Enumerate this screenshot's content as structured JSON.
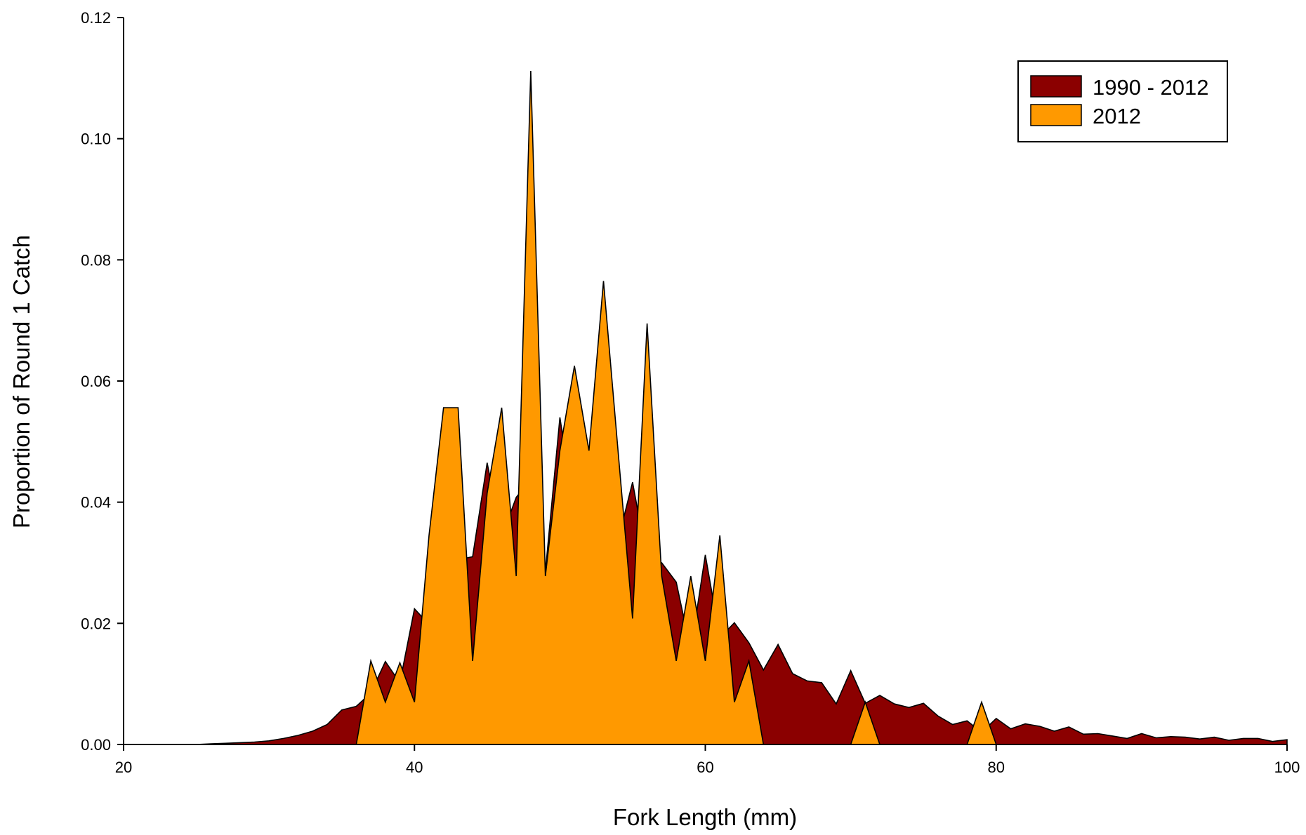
{
  "chart_data": {
    "type": "area",
    "xlabel": "Fork Length (mm)",
    "ylabel": "Proportion of Round 1 Catch",
    "xlim": [
      20,
      100
    ],
    "ylim": [
      0,
      0.12
    ],
    "x_ticks": [
      "20",
      "40",
      "60",
      "80",
      "100"
    ],
    "y_ticks": [
      "0.00",
      "0.02",
      "0.04",
      "0.06",
      "0.08",
      "0.10",
      "0.12"
    ],
    "grid": false,
    "legend_position": "top-right",
    "series": [
      {
        "name": "1990 - 2012",
        "color": "#8b0000",
        "x": [
          20,
          21,
          22,
          23,
          24,
          25,
          26,
          27,
          28,
          29,
          30,
          31,
          32,
          33,
          34,
          35,
          36,
          37,
          38,
          39,
          40,
          41,
          42,
          43,
          44,
          45,
          46,
          47,
          48,
          49,
          50,
          51,
          52,
          53,
          54,
          55,
          56,
          57,
          58,
          59,
          60,
          61,
          62,
          63,
          64,
          65,
          66,
          67,
          68,
          69,
          70,
          71,
          72,
          73,
          74,
          75,
          76,
          77,
          78,
          79,
          80,
          81,
          82,
          83,
          84,
          85,
          86,
          87,
          88,
          89,
          90,
          91,
          92,
          93,
          94,
          95,
          96,
          97,
          98,
          99,
          100
        ],
        "values": [
          0,
          0,
          0,
          0,
          0,
          0,
          0.0001,
          0.0002,
          0.0003,
          0.0004,
          0.0006,
          0.001,
          0.0015,
          0.0022,
          0.0033,
          0.0057,
          0.0063,
          0.0085,
          0.0137,
          0.0102,
          0.0224,
          0.0198,
          0.0312,
          0.0305,
          0.031,
          0.0465,
          0.0343,
          0.0408,
          0.0438,
          0.0285,
          0.054,
          0.0383,
          0.0478,
          0.0405,
          0.0337,
          0.0433,
          0.0302,
          0.03,
          0.0268,
          0.0155,
          0.0313,
          0.0176,
          0.0201,
          0.0168,
          0.0123,
          0.0165,
          0.0117,
          0.0105,
          0.0102,
          0.0067,
          0.0122,
          0.0068,
          0.0081,
          0.0067,
          0.0061,
          0.0068,
          0.0047,
          0.0033,
          0.0039,
          0.002,
          0.0043,
          0.0026,
          0.0034,
          0.003,
          0.0022,
          0.0029,
          0.0017,
          0.0018,
          0.0014,
          0.001,
          0.0018,
          0.0011,
          0.0013,
          0.0012,
          0.0009,
          0.0012,
          0.0007,
          0.001,
          0.001,
          0.0005,
          0.0008
        ]
      },
      {
        "name": "2012",
        "color": "#ff9900",
        "x": [
          20,
          36,
          37,
          38,
          39,
          40,
          41,
          42,
          43,
          44,
          45,
          46,
          47,
          48,
          49,
          50,
          51,
          52,
          53,
          54,
          55,
          56,
          57,
          58,
          59,
          60,
          61,
          62,
          63,
          64,
          70,
          71,
          72,
          78,
          79,
          80,
          100
        ],
        "values": [
          0,
          0,
          0.0138,
          0.007,
          0.0135,
          0.007,
          0.0345,
          0.0556,
          0.0556,
          0.0138,
          0.0415,
          0.0556,
          0.0278,
          0.1112,
          0.0278,
          0.0485,
          0.0625,
          0.0485,
          0.0765,
          0.0485,
          0.0208,
          0.0695,
          0.0278,
          0.0138,
          0.0278,
          0.0138,
          0.0345,
          0.007,
          0.0138,
          0,
          0,
          0.007,
          0,
          0,
          0.007,
          0,
          0
        ]
      }
    ]
  }
}
